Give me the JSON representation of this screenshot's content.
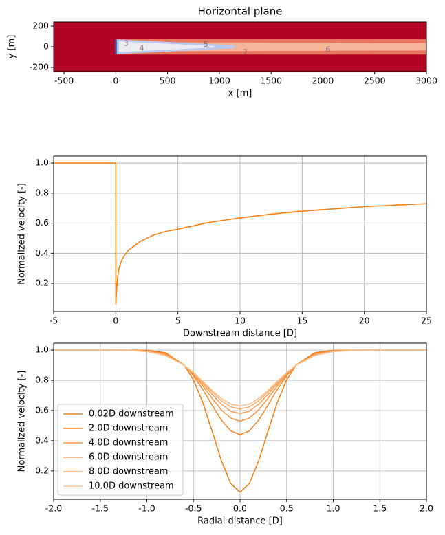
{
  "chart_data": [
    {
      "type": "contour",
      "title": "Horizontal plane",
      "xlabel": "x [m]",
      "ylabel": "y [m]",
      "xlim": [
        -600,
        3000
      ],
      "ylim": [
        -240,
        240
      ],
      "xticks": [
        -500,
        0,
        500,
        1000,
        1500,
        2000,
        2500,
        3000
      ],
      "yticks": [
        -200,
        0,
        200
      ],
      "contour_labels": [
        3,
        4,
        5,
        6,
        7
      ]
    },
    {
      "type": "line",
      "xlabel": "Downstream distance [D]",
      "ylabel": "Normalized velocity [-]",
      "xlim": [
        -5,
        25
      ],
      "ylim": [
        0.013,
        1.046
      ],
      "grid": true,
      "color": "#ff7f0e",
      "xticks": [
        -5,
        0,
        5,
        10,
        15,
        20,
        25
      ],
      "yticks": [
        0.2,
        0.4,
        0.6,
        0.8,
        {
          "value": 1,
          "label": "1.0"
        }
      ],
      "x": [
        -5,
        0,
        0,
        0.1,
        0.25,
        0.5,
        1,
        2,
        3,
        4,
        5,
        7.5,
        10,
        12.5,
        15,
        17.5,
        20,
        22.5,
        25
      ],
      "values": [
        1,
        1,
        0.06,
        0.2,
        0.3,
        0.36,
        0.42,
        0.48,
        0.52,
        0.545,
        0.56,
        0.605,
        0.635,
        0.66,
        0.68,
        0.695,
        0.71,
        0.72,
        0.73
      ]
    },
    {
      "type": "line",
      "xlabel": "Radial distance [D]",
      "ylabel": "Normalized velocity [-]",
      "xlim": [
        -2,
        2
      ],
      "ylim": [
        0.013,
        1.046
      ],
      "grid": true,
      "legend": "lower left",
      "xticks": [
        {
          "value": -2,
          "label": "-2.0"
        },
        -1.5,
        {
          "value": -1,
          "label": "-1.0"
        },
        -0.5,
        {
          "value": 0,
          "label": "0.0"
        },
        0.5,
        {
          "value": 1,
          "label": "1.0"
        },
        1.5,
        {
          "value": 2,
          "label": "2.0"
        }
      ],
      "yticks": [
        0.2,
        0.4,
        0.6,
        0.8,
        {
          "value": 1,
          "label": "1.0"
        }
      ],
      "x": [
        -2,
        -1.5,
        -1.2,
        -1,
        -0.8,
        -0.6,
        -0.5,
        -0.4,
        -0.3,
        -0.2,
        -0.1,
        0,
        0.1,
        0.2,
        0.3,
        0.4,
        0.5,
        0.6,
        0.8,
        1,
        1.2,
        1.5,
        2
      ],
      "series": [
        {
          "name": "0.02D downstream",
          "color": "#f5801a",
          "values": [
            1,
            1,
            1,
            0.998,
            0.983,
            0.901,
            0.803,
            0.654,
            0.464,
            0.268,
            0.117,
            0.06,
            0.117,
            0.268,
            0.464,
            0.654,
            0.803,
            0.901,
            0.983,
            0.998,
            1,
            1,
            1
          ]
        },
        {
          "name": "2.0D downstream",
          "color": "#f98a2c",
          "values": [
            1,
            1,
            0.999,
            0.995,
            0.974,
            0.9,
            0.831,
            0.74,
            0.636,
            0.537,
            0.466,
            0.44,
            0.466,
            0.537,
            0.636,
            0.74,
            0.831,
            0.9,
            0.974,
            0.995,
            0.999,
            1,
            1
          ]
        },
        {
          "name": "4.0D downstream",
          "color": "#fb9646",
          "values": [
            1,
            1,
            0.999,
            0.994,
            0.97,
            0.9,
            0.84,
            0.764,
            0.681,
            0.604,
            0.55,
            0.53,
            0.55,
            0.604,
            0.681,
            0.764,
            0.84,
            0.9,
            0.97,
            0.994,
            0.999,
            1,
            1
          ]
        },
        {
          "name": "6.0D downstream",
          "color": "#fca25c",
          "values": [
            1,
            1,
            0.999,
            0.992,
            0.968,
            0.9,
            0.845,
            0.779,
            0.707,
            0.642,
            0.596,
            0.58,
            0.596,
            0.642,
            0.707,
            0.779,
            0.845,
            0.9,
            0.968,
            0.992,
            0.999,
            1,
            1
          ]
        },
        {
          "name": "8.0D downstream",
          "color": "#fdb073",
          "values": [
            1,
            1,
            0.998,
            0.991,
            0.965,
            0.9,
            0.849,
            0.787,
            0.723,
            0.665,
            0.624,
            0.61,
            0.624,
            0.665,
            0.723,
            0.787,
            0.849,
            0.9,
            0.965,
            0.991,
            0.998,
            1,
            1
          ]
        },
        {
          "name": "10.0D downstream",
          "color": "#fdc08f",
          "values": [
            1,
            1,
            0.998,
            0.99,
            0.964,
            0.9,
            0.851,
            0.794,
            0.734,
            0.68,
            0.643,
            0.63,
            0.643,
            0.68,
            0.734,
            0.794,
            0.851,
            0.9,
            0.964,
            0.99,
            0.998,
            1,
            1
          ]
        }
      ]
    }
  ]
}
